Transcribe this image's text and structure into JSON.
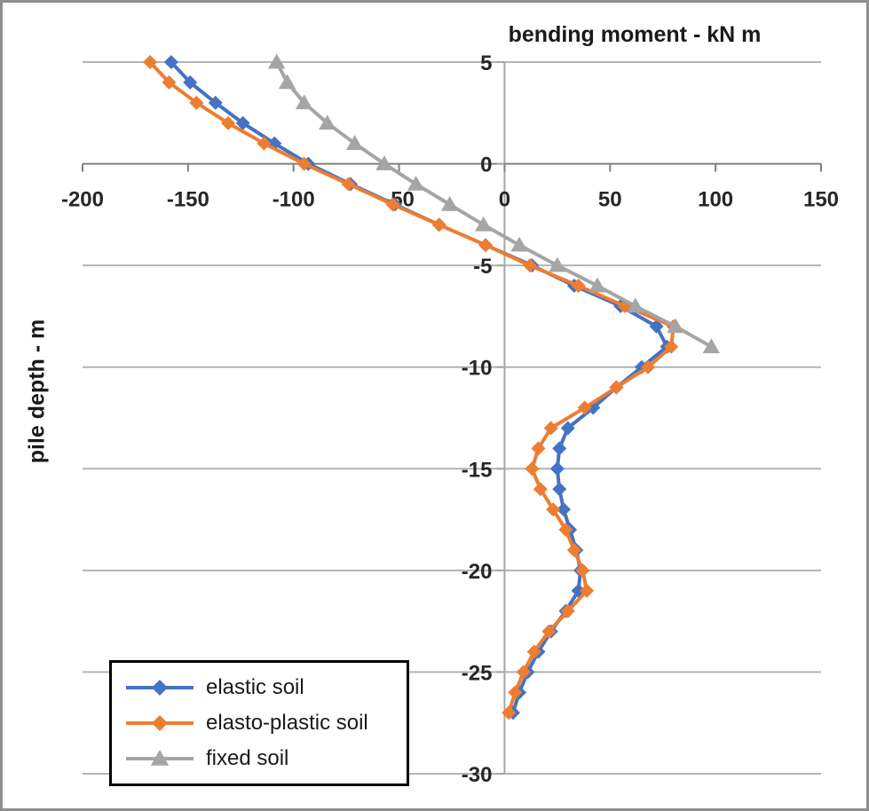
{
  "chart_data": {
    "type": "line",
    "title": "bending moment - kN m",
    "ylabel": "pile depth - m",
    "grid": "horizontal",
    "legend_position": "bottom-left",
    "x_axis": {
      "min": -200,
      "max": 150,
      "ticks": [
        -200,
        -150,
        -100,
        -50,
        0,
        50,
        100,
        150
      ]
    },
    "y_axis": {
      "min": -30,
      "max": 5,
      "ticks": [
        5,
        0,
        -5,
        -10,
        -15,
        -20,
        -25,
        -30
      ]
    },
    "colors": {
      "gridline": "#b3b3b3",
      "axis_line": "#7f7f7f",
      "zero_line": "#a6a6a6",
      "text": "#262626",
      "legend_border": "#000000",
      "frame_border": "#8e8e8e"
    },
    "series": [
      {
        "name": "elastic soil",
        "color": "#4472C4",
        "marker": "diamond",
        "points": [
          [
            -158,
            5
          ],
          [
            -149,
            4
          ],
          [
            -137,
            3
          ],
          [
            -124,
            2
          ],
          [
            -109,
            1
          ],
          [
            -93,
            0
          ],
          [
            -73,
            -1
          ],
          [
            -52,
            -2
          ],
          [
            -31,
            -3
          ],
          [
            -9,
            -4
          ],
          [
            13,
            -5
          ],
          [
            33,
            -6
          ],
          [
            55,
            -7
          ],
          [
            72,
            -8
          ],
          [
            77,
            -9
          ],
          [
            65,
            -10
          ],
          [
            53,
            -11
          ],
          [
            42,
            -12
          ],
          [
            30,
            -13
          ],
          [
            26,
            -14
          ],
          [
            25,
            -15
          ],
          [
            26,
            -16
          ],
          [
            28,
            -17
          ],
          [
            31,
            -18
          ],
          [
            34,
            -19
          ],
          [
            36,
            -20
          ],
          [
            35,
            -21
          ],
          [
            29,
            -22
          ],
          [
            22,
            -23
          ],
          [
            16,
            -24
          ],
          [
            11,
            -25
          ],
          [
            7,
            -26
          ],
          [
            4,
            -27
          ]
        ]
      },
      {
        "name": "elasto-plastic soil",
        "color": "#ED7D31",
        "marker": "diamond",
        "points": [
          [
            -168,
            5
          ],
          [
            -159,
            4
          ],
          [
            -146,
            3
          ],
          [
            -131,
            2
          ],
          [
            -114,
            1
          ],
          [
            -95,
            0
          ],
          [
            -74,
            -1
          ],
          [
            -53,
            -2
          ],
          [
            -31,
            -3
          ],
          [
            -9,
            -4
          ],
          [
            12,
            -5
          ],
          [
            35,
            -6
          ],
          [
            57,
            -7
          ],
          [
            80,
            -8
          ],
          [
            79,
            -9
          ],
          [
            68,
            -10
          ],
          [
            53,
            -11
          ],
          [
            38,
            -12
          ],
          [
            22,
            -13
          ],
          [
            16,
            -14
          ],
          [
            13,
            -15
          ],
          [
            17,
            -16
          ],
          [
            23,
            -17
          ],
          [
            29,
            -18
          ],
          [
            33,
            -19
          ],
          [
            37,
            -20
          ],
          [
            39,
            -21
          ],
          [
            30,
            -22
          ],
          [
            21,
            -23
          ],
          [
            14,
            -24
          ],
          [
            9,
            -25
          ],
          [
            5,
            -26
          ],
          [
            2,
            -27
          ]
        ]
      },
      {
        "name": "fixed soil",
        "color": "#A5A5A5",
        "marker": "triangle",
        "points": [
          [
            -108,
            5
          ],
          [
            -103,
            4
          ],
          [
            -95,
            3
          ],
          [
            -84,
            2
          ],
          [
            -71,
            1
          ],
          [
            -57,
            0
          ],
          [
            -42,
            -1
          ],
          [
            -26,
            -2
          ],
          [
            -10,
            -3
          ],
          [
            7,
            -4
          ],
          [
            25,
            -5
          ],
          [
            44,
            -6
          ],
          [
            62,
            -7
          ],
          [
            81,
            -8
          ],
          [
            98,
            -9
          ]
        ]
      }
    ]
  }
}
